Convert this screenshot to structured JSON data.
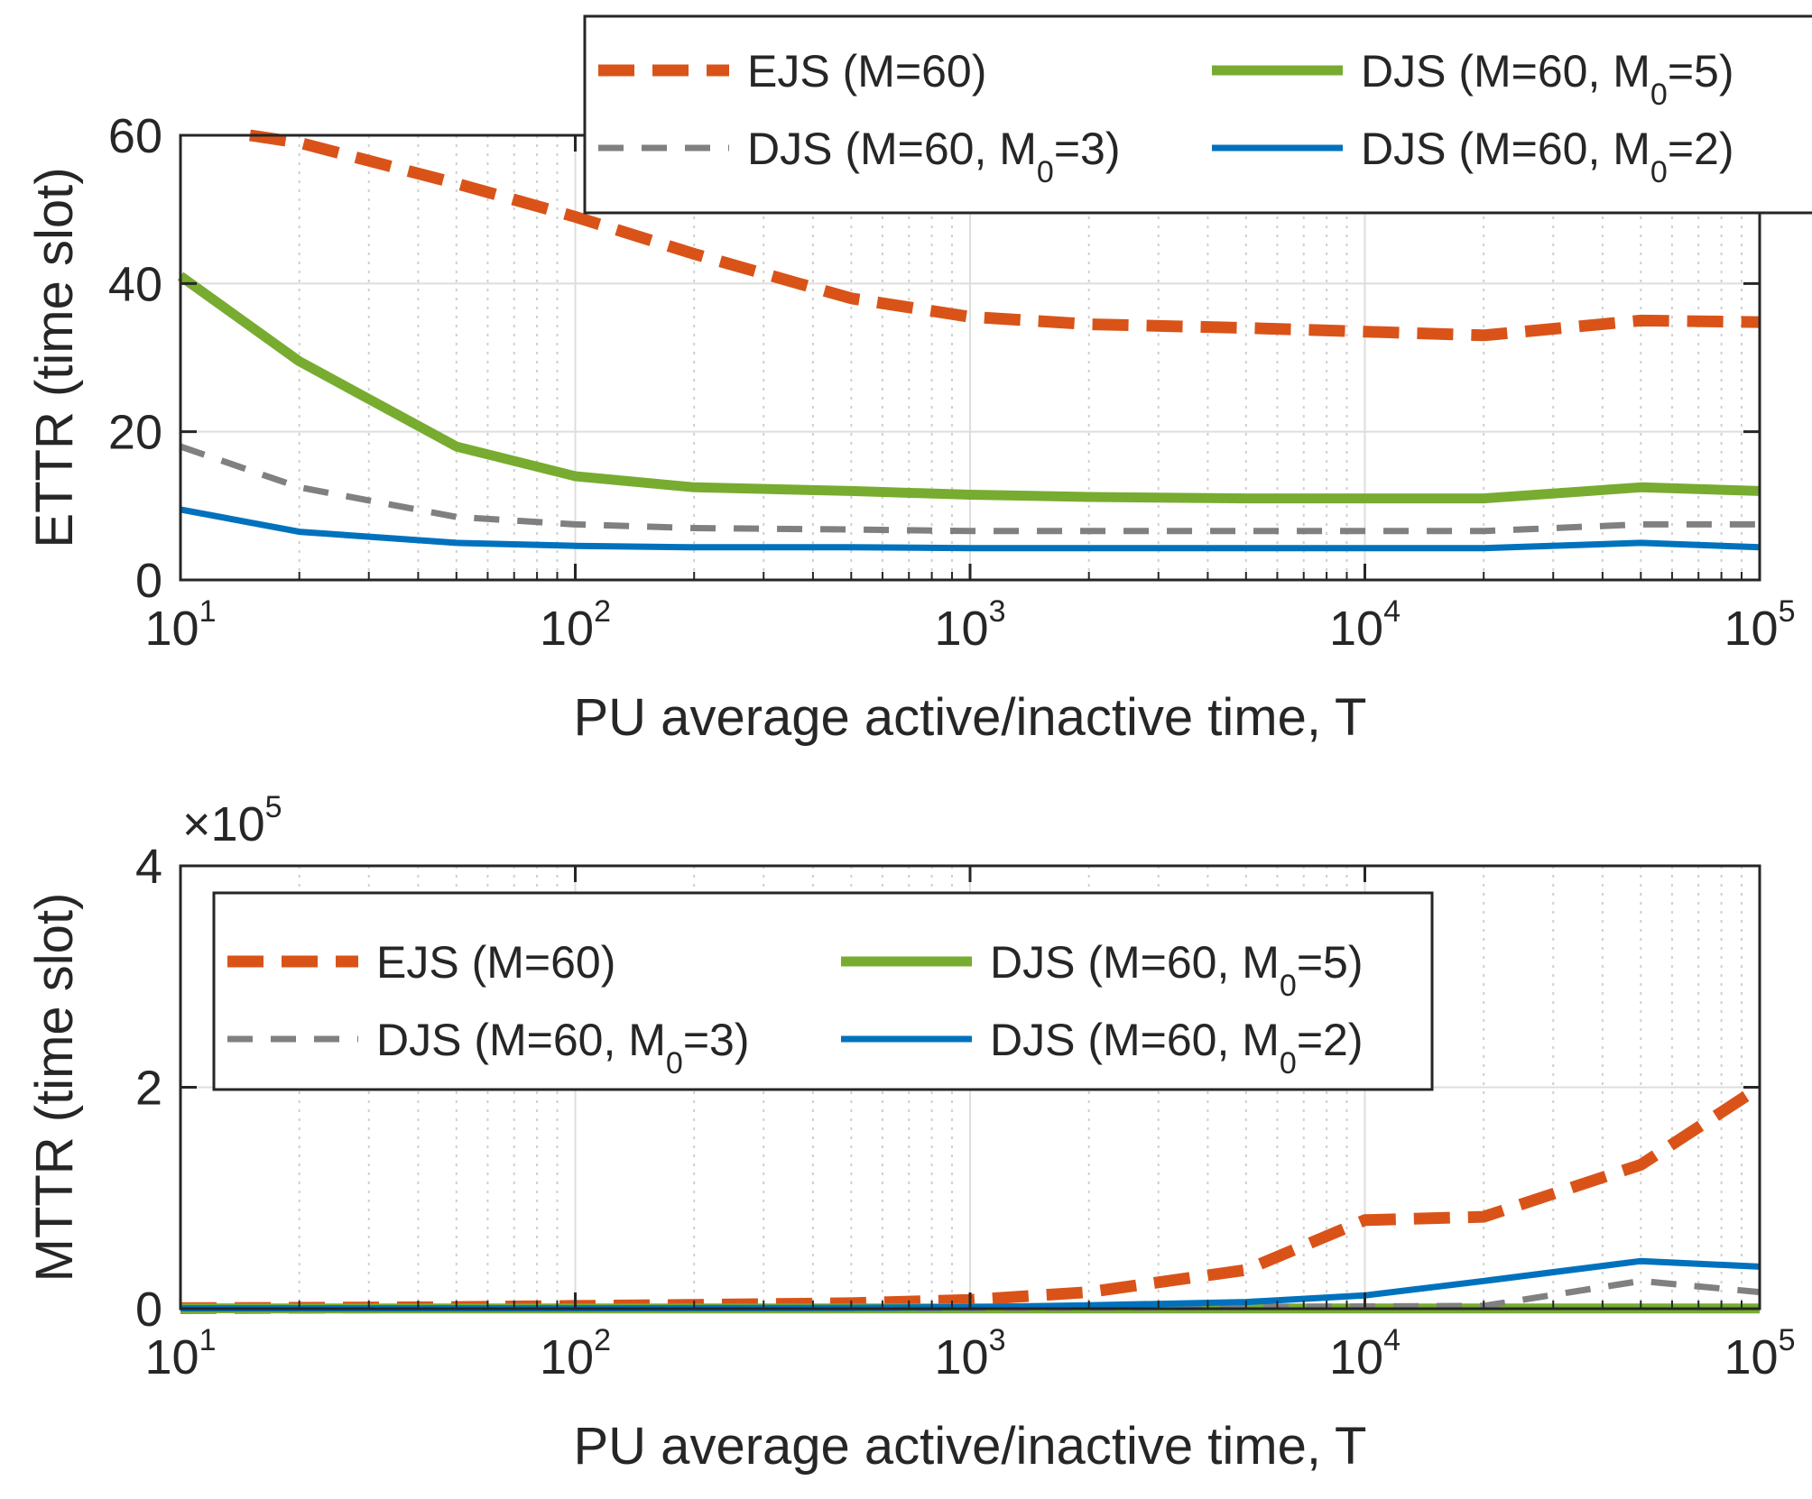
{
  "chart_data": [
    {
      "type": "line",
      "xscale": "log",
      "xlim": [
        10,
        100000
      ],
      "ylim": [
        0,
        60
      ],
      "xlabel": "PU average active/inactive time, T",
      "ylabel": "ETTR (time slot)",
      "x_ticks": [
        10,
        100,
        1000,
        10000,
        100000
      ],
      "x_tick_base": [
        "10",
        "10",
        "10",
        "10",
        "10"
      ],
      "x_tick_exp": [
        "1",
        "2",
        "3",
        "4",
        "5"
      ],
      "y_ticks": [
        0,
        20,
        40,
        60
      ],
      "y_tick_labels": [
        "0",
        "20",
        "40",
        "60"
      ],
      "grid": true,
      "legend_placement": "top-right",
      "colors": {
        "ejs": "#d95319",
        "djs5": "#77ac30",
        "djs3": "#808080",
        "djs2": "#0072bd"
      },
      "series": [
        {
          "key": "ejs",
          "label_main": "EJS (M=60)",
          "label_sub": "",
          "label_end": "",
          "style": "dash",
          "x": [
            15,
            20,
            50,
            100,
            200,
            500,
            1000,
            2000,
            5000,
            10000,
            20000,
            50000,
            100000
          ],
          "y": [
            60,
            59,
            53.5,
            49,
            44,
            38,
            35.5,
            34.5,
            34,
            33.5,
            33,
            35,
            34.8
          ]
        },
        {
          "key": "djs5",
          "label_main": "DJS (M=60, M",
          "label_sub": "0",
          "label_end": "=5)",
          "style": "solid",
          "x": [
            10,
            20,
            50,
            100,
            200,
            500,
            1000,
            2000,
            5000,
            10000,
            20000,
            50000,
            100000
          ],
          "y": [
            41,
            29.5,
            18,
            14,
            12.5,
            12,
            11.5,
            11.2,
            11,
            11,
            11,
            12.5,
            12
          ]
        },
        {
          "key": "djs3",
          "label_main": "DJS (M=60, M",
          "label_sub": "0",
          "label_end": "=3)",
          "style": "dash",
          "x": [
            10,
            20,
            50,
            100,
            200,
            500,
            1000,
            2000,
            5000,
            10000,
            20000,
            50000,
            100000
          ],
          "y": [
            18,
            12.5,
            8.5,
            7.5,
            7,
            6.8,
            6.6,
            6.6,
            6.6,
            6.6,
            6.6,
            7.5,
            7.5
          ]
        },
        {
          "key": "djs2",
          "label_main": "DJS (M=60, M",
          "label_sub": "0",
          "label_end": "=2)",
          "style": "solid",
          "x": [
            10,
            20,
            50,
            100,
            200,
            500,
            1000,
            2000,
            5000,
            10000,
            20000,
            50000,
            100000
          ],
          "y": [
            9.5,
            6.5,
            5,
            4.6,
            4.4,
            4.4,
            4.3,
            4.3,
            4.3,
            4.3,
            4.3,
            5,
            4.4
          ]
        }
      ]
    },
    {
      "type": "line",
      "xscale": "log",
      "xlim": [
        10,
        100000
      ],
      "ylim": [
        0,
        400000
      ],
      "xlabel": "PU average active/inactive time, T",
      "ylabel": "MTTR (time slot)",
      "y_multiplier": "×10",
      "y_multiplier_exp": "5",
      "x_ticks": [
        10,
        100,
        1000,
        10000,
        100000
      ],
      "x_tick_base": [
        "10",
        "10",
        "10",
        "10",
        "10"
      ],
      "x_tick_exp": [
        "1",
        "2",
        "3",
        "4",
        "5"
      ],
      "y_ticks": [
        0,
        200000,
        400000
      ],
      "y_tick_labels": [
        "0",
        "2",
        "4"
      ],
      "grid": true,
      "legend_placement": "top-left",
      "colors": {
        "ejs": "#d95319",
        "djs5": "#77ac30",
        "djs3": "#808080",
        "djs2": "#0072bd"
      },
      "series": [
        {
          "key": "ejs",
          "label_main": "EJS (M=60)",
          "label_sub": "",
          "label_end": "",
          "style": "dash",
          "x": [
            10,
            20,
            50,
            100,
            200,
            500,
            1000,
            2000,
            5000,
            10000,
            20000,
            50000,
            100000
          ],
          "y": [
            500,
            800,
            1500,
            2500,
            3500,
            5000,
            8000,
            15000,
            35000,
            80000,
            83000,
            130000,
            200000
          ]
        },
        {
          "key": "djs5",
          "label_main": "DJS (M=60, M",
          "label_sub": "0",
          "label_end": "=5)",
          "style": "solid",
          "x": [
            10,
            20,
            50,
            100,
            200,
            500,
            1000,
            2000,
            5000,
            10000,
            20000,
            50000,
            100000
          ],
          "y": [
            300,
            200,
            200,
            200,
            200,
            200,
            200,
            200,
            200,
            200,
            200,
            200,
            200
          ]
        },
        {
          "key": "djs3",
          "label_main": "DJS (M=60, M",
          "label_sub": "0",
          "label_end": "=3)",
          "style": "dash",
          "x": [
            10,
            20,
            50,
            100,
            200,
            500,
            1000,
            2000,
            5000,
            10000,
            20000,
            50000,
            100000
          ],
          "y": [
            300,
            300,
            300,
            300,
            300,
            300,
            500,
            800,
            1500,
            2000,
            2500,
            25000,
            15000
          ]
        },
        {
          "key": "djs2",
          "label_main": "DJS (M=60, M",
          "label_sub": "0",
          "label_end": "=2)",
          "style": "solid",
          "x": [
            10,
            20,
            50,
            100,
            200,
            500,
            1000,
            2000,
            5000,
            10000,
            20000,
            50000,
            100000
          ],
          "y": [
            300,
            300,
            300,
            300,
            500,
            700,
            1500,
            3000,
            6000,
            12000,
            25000,
            43000,
            38000
          ]
        }
      ]
    }
  ]
}
